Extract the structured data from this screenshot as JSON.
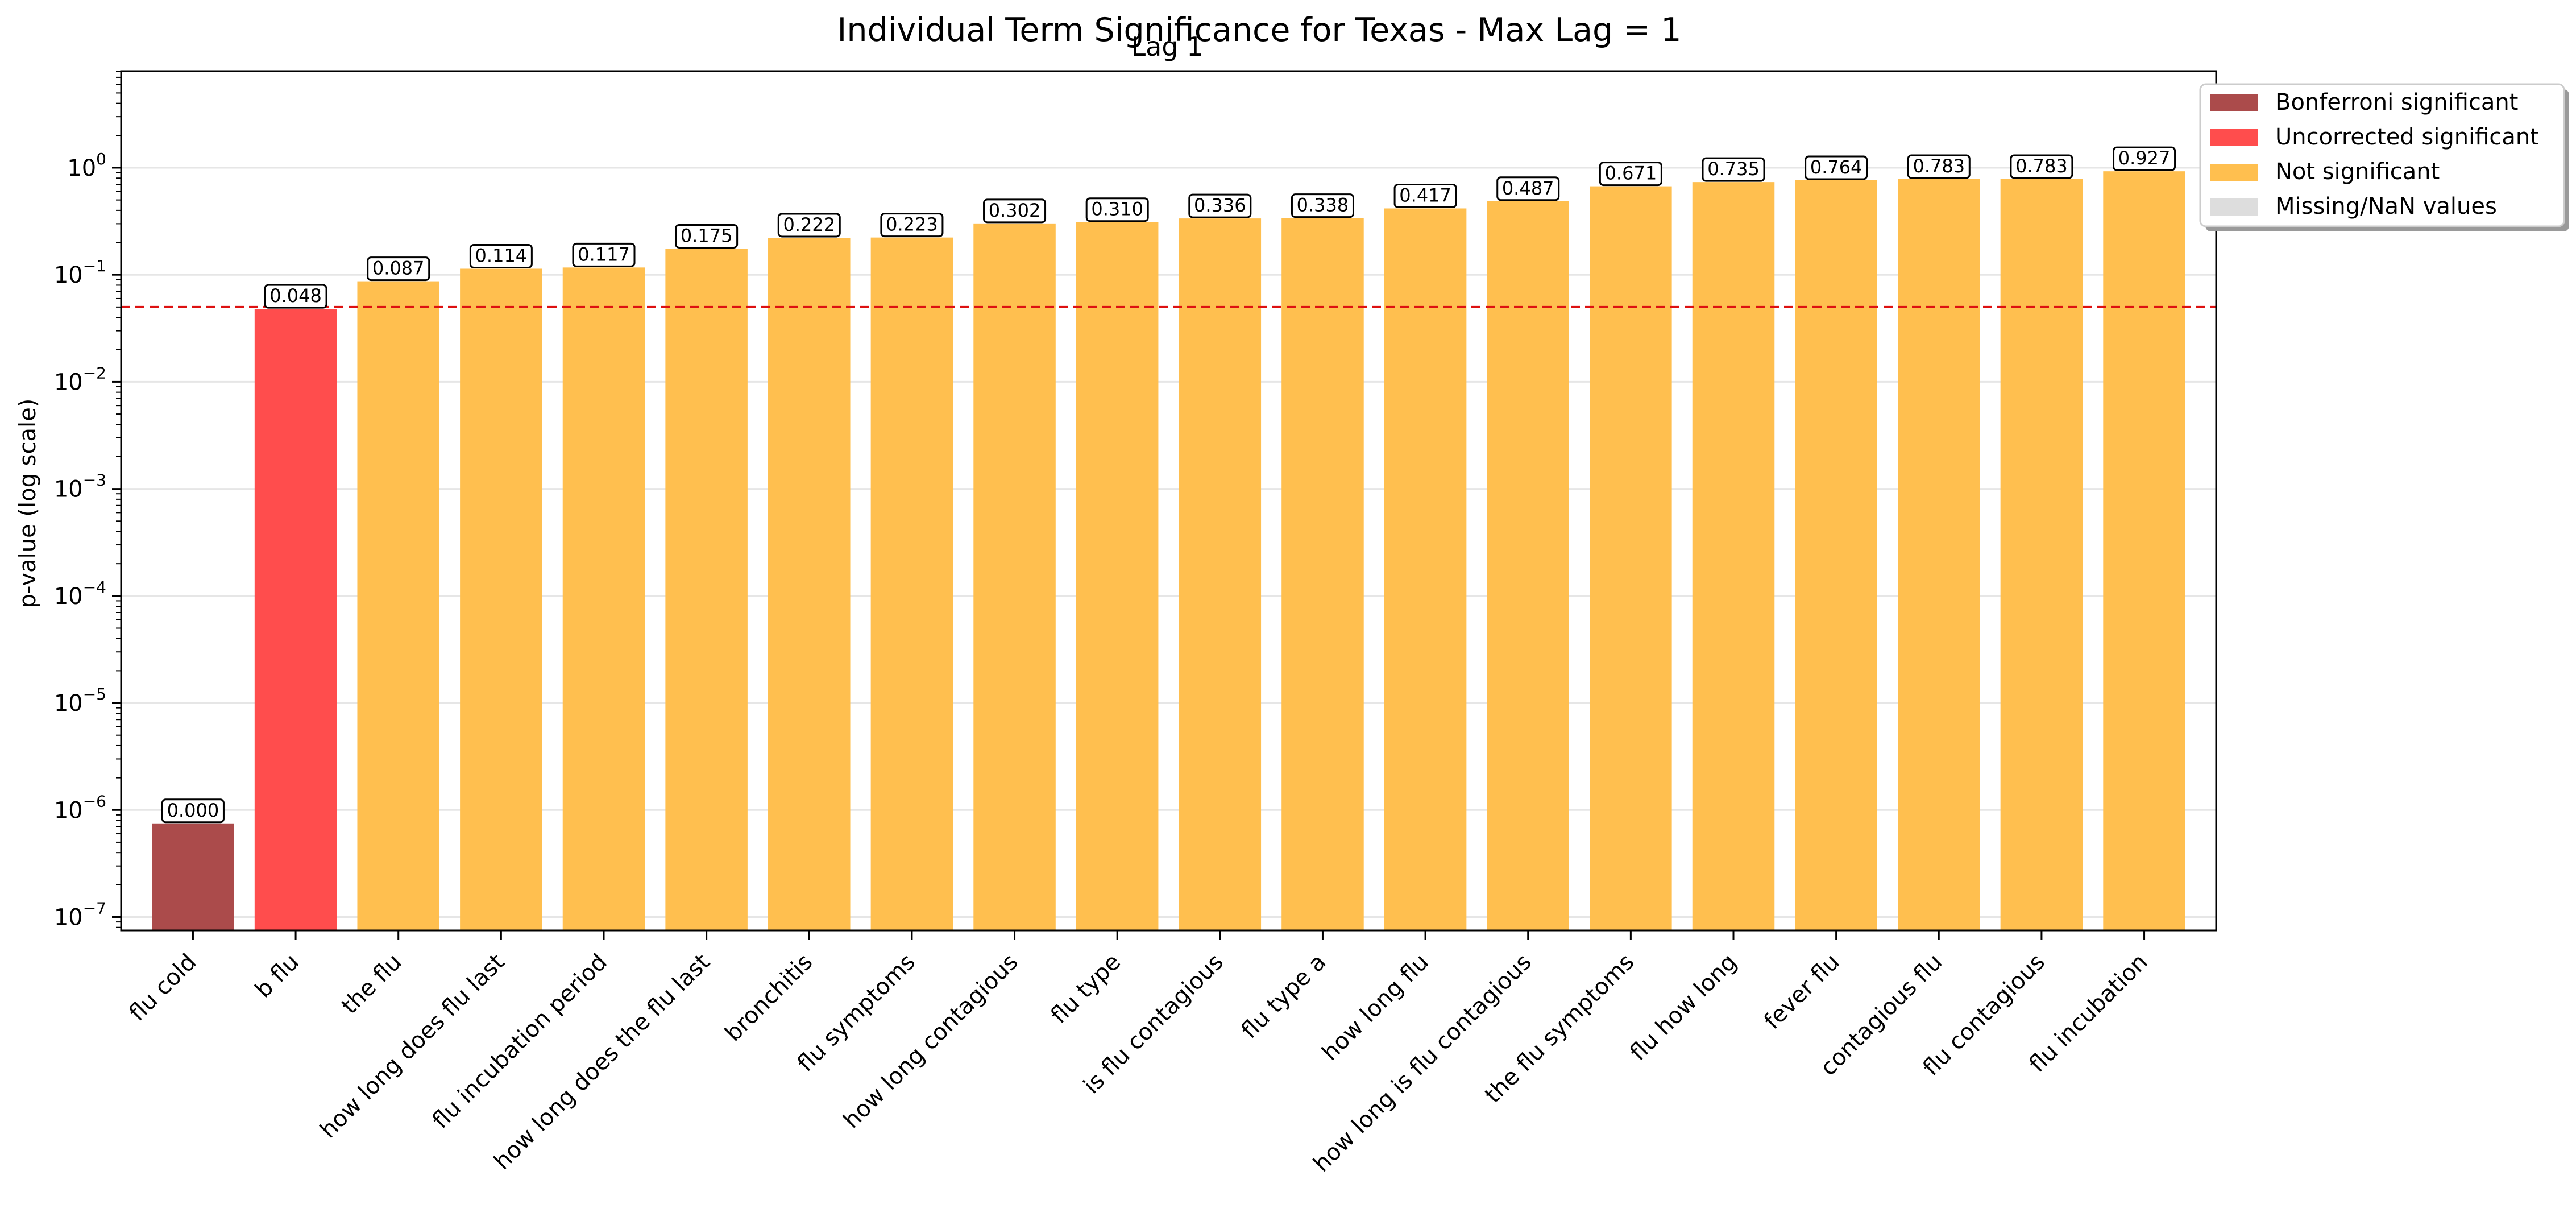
{
  "chart_data": {
    "type": "bar",
    "title": "Individual Term Significance for Texas - Max Lag = 1",
    "subtitle": "Lag 1",
    "xlabel": "",
    "ylabel": "p-value (log scale)",
    "y_scale": "log",
    "ylim": [
      7.5e-08,
      8
    ],
    "yticks": [
      {
        "value": 1e-07,
        "base": "10",
        "exp": "−7"
      },
      {
        "value": 1e-06,
        "base": "10",
        "exp": "−6"
      },
      {
        "value": 1e-05,
        "base": "10",
        "exp": "−5"
      },
      {
        "value": 0.0001,
        "base": "10",
        "exp": "−4"
      },
      {
        "value": 0.001,
        "base": "10",
        "exp": "−3"
      },
      {
        "value": 0.01,
        "base": "10",
        "exp": "−2"
      },
      {
        "value": 0.1,
        "base": "10",
        "exp": "−1"
      },
      {
        "value": 1,
        "base": "10",
        "exp": "0"
      }
    ],
    "grid": true,
    "threshold_line": {
      "value": 0.05,
      "color": "#dd1111",
      "style": "dashed"
    },
    "categories": [
      "flu cold",
      "b flu",
      "the flu",
      "how long does flu last",
      "flu incubation period",
      "how long does the flu last",
      "bronchitis",
      "flu symptoms",
      "how long contagious",
      "flu type",
      "is flu contagious",
      "flu type a",
      "how long flu",
      "how long is flu contagious",
      "the flu symptoms",
      "flu how long",
      "fever flu",
      "contagious flu",
      "flu contagious",
      "flu incubation"
    ],
    "values": [
      7.5e-07,
      0.048,
      0.087,
      0.114,
      0.117,
      0.175,
      0.222,
      0.223,
      0.302,
      0.31,
      0.336,
      0.338,
      0.417,
      0.487,
      0.671,
      0.735,
      0.764,
      0.783,
      0.783,
      0.927
    ],
    "value_labels": [
      "0.000",
      "0.048",
      "0.087",
      "0.114",
      "0.117",
      "0.175",
      "0.222",
      "0.223",
      "0.302",
      "0.310",
      "0.336",
      "0.338",
      "0.417",
      "0.487",
      "0.671",
      "0.735",
      "0.764",
      "0.783",
      "0.783",
      "0.927"
    ],
    "status": [
      "bonferroni",
      "uncorrected",
      "not",
      "not",
      "not",
      "not",
      "not",
      "not",
      "not",
      "not",
      "not",
      "not",
      "not",
      "not",
      "not",
      "not",
      "not",
      "not",
      "not",
      "not"
    ],
    "colors": {
      "bonferroni": "#ab4b4b",
      "uncorrected": "#ff4d4d",
      "not": "#ffbf4f",
      "missing": "#dddddd"
    },
    "legend": {
      "placement": "top-right",
      "items": [
        {
          "key": "bonferroni",
          "label": "Bonferroni significant"
        },
        {
          "key": "uncorrected",
          "label": "Uncorrected significant"
        },
        {
          "key": "not",
          "label": "Not significant"
        },
        {
          "key": "missing",
          "label": "Missing/NaN values"
        }
      ]
    }
  }
}
